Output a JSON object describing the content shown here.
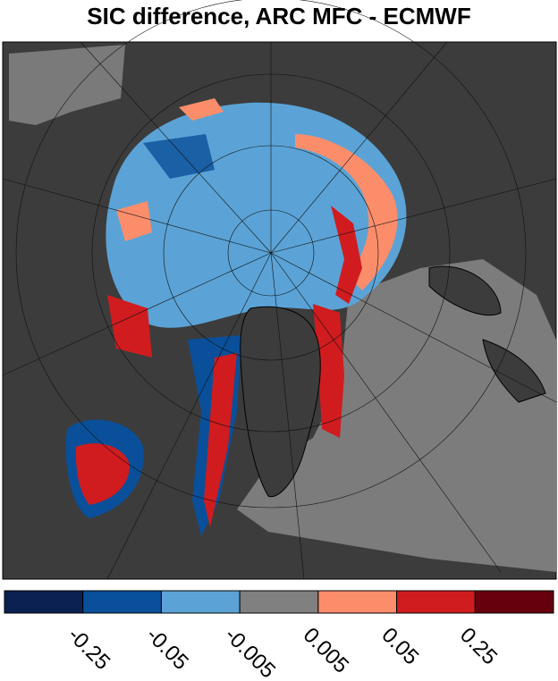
{
  "title": "SIC difference, ARC MFC - ECMWF",
  "colorbar": {
    "colors": [
      "#0b2151",
      "#0a4f99",
      "#5ba3d6",
      "#808080",
      "#fc8d6b",
      "#d01c1f",
      "#67000d"
    ],
    "boundaries": [
      -0.25,
      -0.05,
      -0.005,
      0.005,
      0.05,
      0.25
    ]
  }
}
